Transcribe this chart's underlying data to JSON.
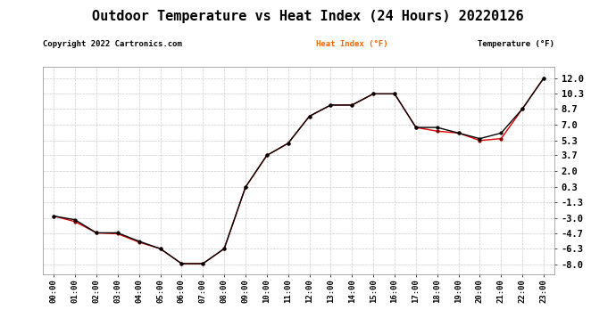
{
  "title": "Outdoor Temperature vs Heat Index (24 Hours) 20220126",
  "copyright": "Copyright 2022 Cartronics.com",
  "legend_heat": "Heat Index (°F)",
  "legend_temp": "Temperature (°F)",
  "hours": [
    "00:00",
    "01:00",
    "02:00",
    "03:00",
    "04:00",
    "05:00",
    "06:00",
    "07:00",
    "08:00",
    "09:00",
    "10:00",
    "11:00",
    "12:00",
    "13:00",
    "14:00",
    "15:00",
    "16:00",
    "17:00",
    "18:00",
    "19:00",
    "20:00",
    "21:00",
    "22:00",
    "23:00"
  ],
  "temperature": [
    -2.8,
    -3.2,
    -4.6,
    -4.6,
    -5.5,
    -6.3,
    -7.9,
    -7.9,
    -6.3,
    0.3,
    3.7,
    5.0,
    7.9,
    9.1,
    9.1,
    10.3,
    10.3,
    6.7,
    6.7,
    6.1,
    5.5,
    6.1,
    8.7,
    12.0
  ],
  "heat_index": [
    -2.8,
    -3.4,
    -4.6,
    -4.7,
    -5.6,
    -6.3,
    -7.9,
    -7.9,
    -6.3,
    0.3,
    3.7,
    5.0,
    7.9,
    9.1,
    9.1,
    10.3,
    10.3,
    6.7,
    6.3,
    6.1,
    5.3,
    5.5,
    8.7,
    12.0
  ],
  "yticks": [
    -8.0,
    -6.3,
    -4.7,
    -3.0,
    -1.3,
    0.3,
    2.0,
    3.7,
    5.3,
    7.0,
    8.7,
    10.3,
    12.0
  ],
  "ymin": -9.0,
  "ymax": 13.2,
  "temp_color": "#000000",
  "heat_color": "#dd0000",
  "background_color": "#ffffff",
  "grid_color": "#cccccc",
  "title_fontsize": 11,
  "copyright_color": "#000000",
  "legend_color_heat": "#ff6600",
  "legend_color_temp": "#000000"
}
